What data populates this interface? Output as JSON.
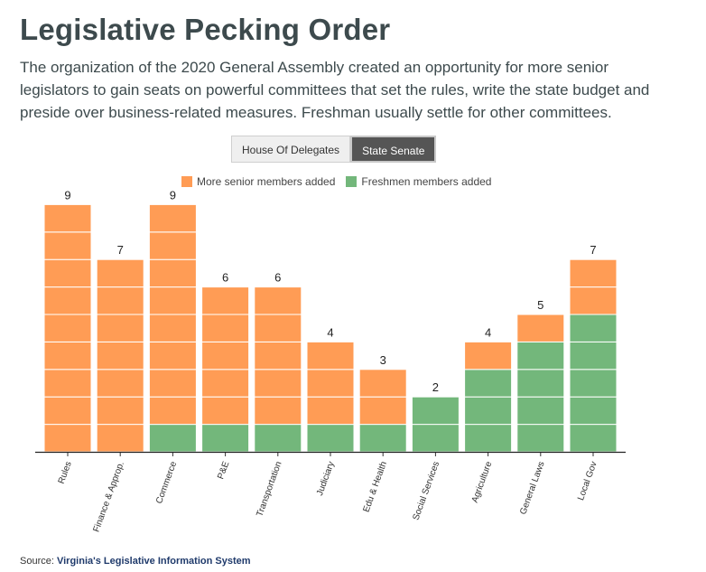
{
  "title": "Legislative Pecking Order",
  "subtitle": "The organization of the 2020 General Assembly created an opportunity for more senior legislators to gain seats on powerful committees that set the rules, write the state budget and preside over business-related measures. Freshman usually settle for other committees.",
  "toggle": {
    "options": [
      "House Of Delegates",
      "State Senate"
    ],
    "selected": "State Senate"
  },
  "source": {
    "label": "Source:",
    "name": "Virginia's Legislative Information System"
  },
  "colors": {
    "senior": "#ff9c55",
    "freshmen": "#73b77b"
  },
  "chart_data": {
    "type": "bar",
    "stacked": true,
    "categories": [
      "Rules",
      "Finance & Approp.",
      "Commerce",
      "P&E",
      "Transportation",
      "Judiciary",
      "Edu & Health",
      "Social Services",
      "Agriculture",
      "General Laws",
      "Local Gov"
    ],
    "series": [
      {
        "name": "Freshmen members added",
        "values": [
          0,
          0,
          1,
          1,
          1,
          1,
          1,
          2,
          3,
          4,
          5
        ]
      },
      {
        "name": "More senior members added",
        "values": [
          9,
          7,
          8,
          5,
          5,
          3,
          2,
          0,
          1,
          1,
          2
        ]
      }
    ],
    "totals": [
      9,
      7,
      9,
      6,
      6,
      4,
      3,
      2,
      4,
      5,
      7
    ],
    "legend": [
      "More senior members added",
      "Freshmen members added"
    ],
    "legend_position": "top",
    "ylim": [
      0,
      9
    ],
    "grid": false,
    "xlabel": "",
    "ylabel": ""
  }
}
